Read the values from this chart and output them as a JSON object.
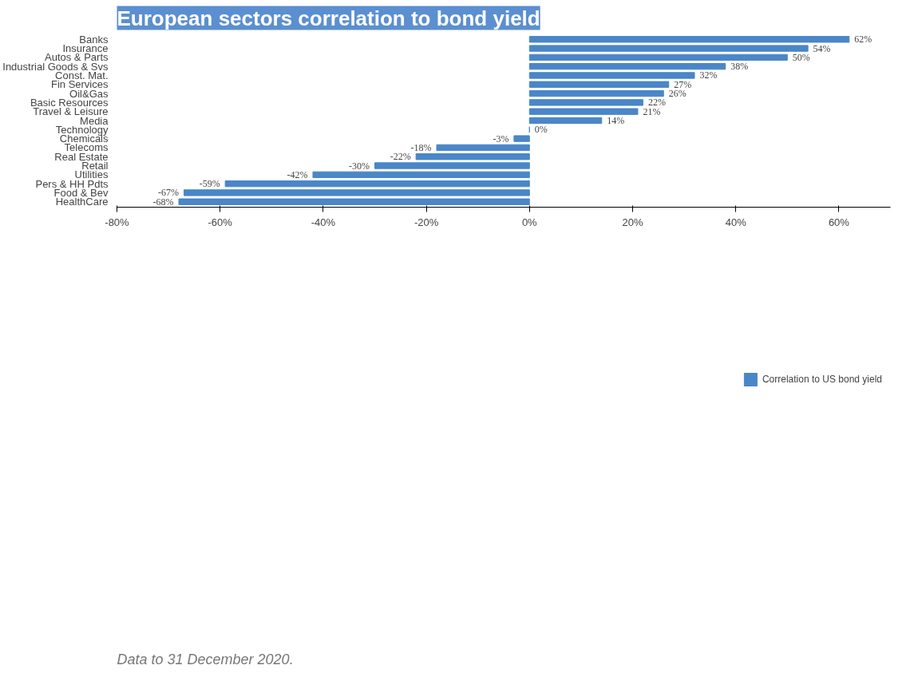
{
  "chart_data": {
    "type": "bar",
    "orientation": "horizontal",
    "title": "European sectors correlation to bond yield",
    "categories": [
      "Banks",
      "Insurance",
      "Autos & Parts",
      "Industrial Goods & Svs",
      "Const. Mat.",
      "Fin Services",
      "Oil&Gas",
      "Basic Resources",
      "Travel & Leisure",
      "Media",
      "Technology",
      "Chemicals",
      "Telecoms",
      "Real Estate",
      "Retail",
      "Utilities",
      "Pers & HH Pdts",
      "Food & Bev",
      "HealthCare"
    ],
    "series": [
      {
        "name": "Correlation to US bond yield",
        "color": "#4a86c8",
        "values": [
          62,
          54,
          50,
          38,
          32,
          27,
          26,
          22,
          21,
          14,
          0,
          -3,
          -18,
          -22,
          -30,
          -42,
          -59,
          -67,
          -68
        ],
        "value_labels": [
          "62%",
          "54%",
          "50%",
          "38%",
          "32%",
          "27%",
          "26%",
          "22%",
          "21%",
          "14%",
          "0%",
          "-3%",
          "-18%",
          "-22%",
          "-30%",
          "-42%",
          "-59%",
          "-67%",
          "-68%"
        ]
      }
    ],
    "xlim": [
      -80,
      70
    ],
    "xticks": [
      {
        "value": -80,
        "label": "-80%"
      },
      {
        "value": -60,
        "label": "-60%"
      },
      {
        "value": -40,
        "label": "-40%"
      },
      {
        "value": -20,
        "label": "-20%"
      },
      {
        "value": 0,
        "label": "0%"
      },
      {
        "value": 20,
        "label": "20%"
      },
      {
        "value": 40,
        "label": "40%"
      },
      {
        "value": 60,
        "label": "60%"
      }
    ],
    "grid": false,
    "legend": "bottom",
    "annotations": [
      "Data to 31 December 2020."
    ]
  }
}
